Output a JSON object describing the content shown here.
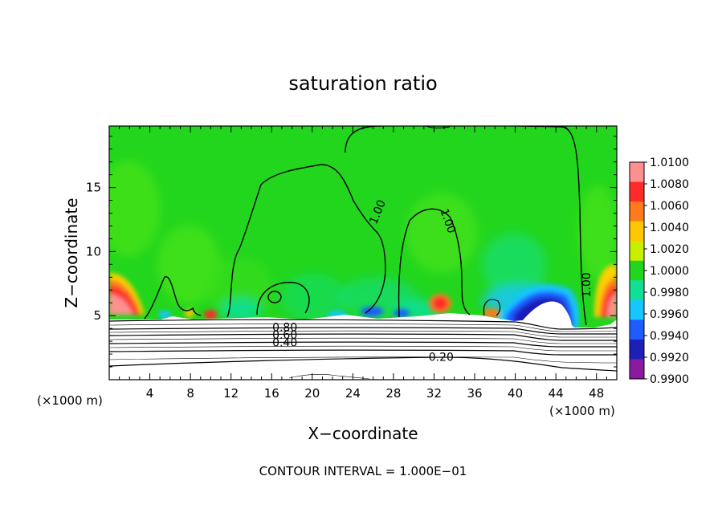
{
  "chart_data": {
    "type": "heatmap",
    "title": "saturation ratio",
    "xlabel": "X−coordinate",
    "ylabel": "Z−coordinate",
    "x_unit_left": "(×1000 m)",
    "x_unit_right": "(×1000 m)",
    "xlim": [
      0,
      50
    ],
    "ylim": [
      0,
      19.8
    ],
    "x_ticks": [
      4,
      8,
      12,
      16,
      20,
      24,
      28,
      32,
      36,
      40,
      44,
      48
    ],
    "y_ticks": [
      5,
      10,
      15
    ],
    "footer": "CONTOUR INTERVAL = 1.000E−01",
    "colorbar": {
      "levels": [
        "1.0100",
        "1.0080",
        "1.0060",
        "1.0040",
        "1.0020",
        "1.0000",
        "0.9980",
        "0.9960",
        "0.9940",
        "0.9920",
        "0.9900"
      ],
      "colors": [
        "#ff9090",
        "#ff2a2a",
        "#ff7a1a",
        "#ffc800",
        "#c8ee00",
        "#22d61e",
        "#10e096",
        "#18c6ff",
        "#1f5cff",
        "#1f1fb8",
        "#8a1aa0"
      ]
    },
    "contour_labels": [
      {
        "text": "1.00",
        "x": 26.4,
        "y": 13.1,
        "angle": -68
      },
      {
        "text": "1.00",
        "x": 33.4,
        "y": 12.4,
        "angle": 70
      },
      {
        "text": "1.00",
        "x": 47.0,
        "y": 7.4,
        "angle": -90
      },
      {
        "text": "0.80",
        "x": 17.3,
        "y": 4.1,
        "angle": 0
      },
      {
        "text": "0.60",
        "x": 17.3,
        "y": 3.5,
        "angle": 0
      },
      {
        "text": "0.40",
        "x": 17.3,
        "y": 2.9,
        "angle": 0
      },
      {
        "text": "0.20",
        "x": 32.7,
        "y": 1.8,
        "angle": 0
      }
    ]
  }
}
